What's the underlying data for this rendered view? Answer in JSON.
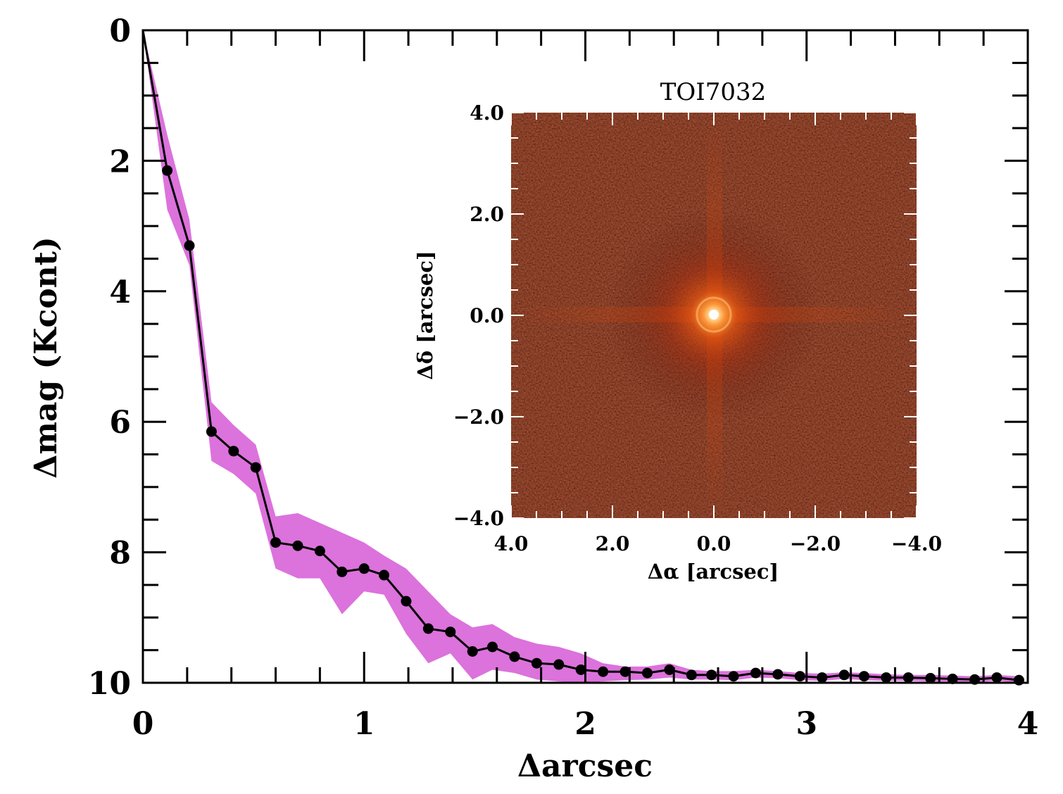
{
  "chart_data": [
    {
      "type": "line",
      "xlabel": "Δarcsec",
      "ylabel": "Δmag (Kcont)",
      "xlim": [
        0,
        4
      ],
      "ylim": [
        0,
        10
      ],
      "y_inverted": true,
      "x_ticks": [
        "0",
        "1",
        "2",
        "3",
        "4"
      ],
      "y_ticks": [
        "0",
        "2",
        "4",
        "6",
        "8",
        "10"
      ],
      "grid": false,
      "series": [
        {
          "values_x": [
            0,
            0.11,
            0.21,
            0.31,
            0.41,
            0.51,
            0.6,
            0.7,
            0.8,
            0.9,
            1.0,
            1.09,
            1.19,
            1.29,
            1.39,
            1.49,
            1.58,
            1.68,
            1.78,
            1.88,
            1.98,
            2.08,
            2.18,
            2.28,
            2.38,
            2.48,
            2.57,
            2.67,
            2.77,
            2.87,
            2.97,
            3.07,
            3.17,
            3.26,
            3.36,
            3.46,
            3.56,
            3.66,
            3.76,
            3.86,
            3.96
          ],
          "values_y": [
            0,
            2.15,
            3.3,
            6.15,
            6.45,
            6.7,
            7.85,
            7.9,
            7.98,
            8.3,
            8.25,
            8.35,
            8.75,
            9.17,
            9.22,
            9.52,
            9.45,
            9.6,
            9.7,
            9.72,
            9.8,
            9.83,
            9.83,
            9.85,
            9.8,
            9.88,
            9.88,
            9.9,
            9.85,
            9.87,
            9.9,
            9.92,
            9.88,
            9.9,
            9.92,
            9.92,
            9.93,
            9.94,
            9.95,
            9.92,
            9.96
          ],
          "band_upper": [
            0,
            1.6,
            2.9,
            5.7,
            6.05,
            6.35,
            7.45,
            7.4,
            7.55,
            7.7,
            7.85,
            8.05,
            8.25,
            8.6,
            8.95,
            9.15,
            9.1,
            9.3,
            9.4,
            9.45,
            9.55,
            9.7,
            9.75,
            9.75,
            9.7,
            9.8,
            9.82,
            9.82,
            9.8,
            9.82,
            9.85,
            9.86,
            9.84,
            9.85,
            9.87,
            9.88,
            9.88,
            9.89,
            9.9,
            9.88,
            9.9
          ],
          "band_lower": [
            0,
            2.75,
            3.6,
            6.6,
            6.8,
            7.1,
            8.25,
            8.4,
            8.4,
            8.95,
            8.6,
            8.65,
            9.25,
            9.7,
            9.55,
            9.95,
            9.8,
            9.85,
            9.95,
            9.98,
            10.0,
            9.98,
            9.96,
            9.95,
            9.92,
            9.95,
            9.95,
            9.96,
            9.92,
            9.93,
            9.96,
            9.97,
            9.94,
            9.96,
            9.97,
            9.97,
            9.98,
            9.98,
            9.99,
            9.97,
            10.0
          ],
          "line_color": "#000000",
          "marker_color": "#000000",
          "band_color": "#dc72dc"
        }
      ],
      "inset": {
        "type": "heatmap",
        "title": "TOI7032",
        "xlabel": "Δα [arcsec]",
        "ylabel": "Δδ [arcsec]",
        "xlim": [
          4.0,
          -4.0
        ],
        "ylim": [
          -4.0,
          4.0
        ],
        "x_ticks": [
          "4.0",
          "2.0",
          "0.0",
          "−2.0",
          "−4.0"
        ],
        "y_ticks": [
          "4.0",
          "2.0",
          "0.0",
          "−2.0",
          "−4.0"
        ],
        "colormap": [
          "#2a0604",
          "#5a0f08",
          "#9a2208",
          "#e05a10",
          "#ffb45a",
          "#ffffff"
        ],
        "peak": [
          0.0,
          0.0
        ]
      }
    }
  ]
}
